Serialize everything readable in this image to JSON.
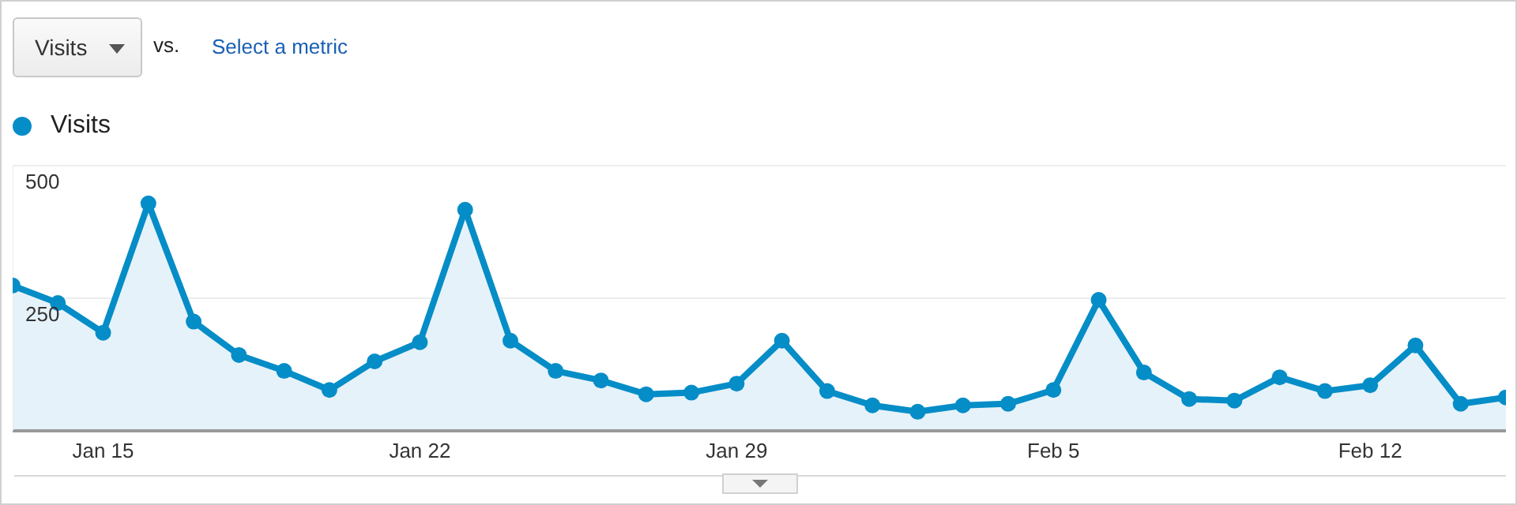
{
  "chart_data": {
    "type": "area",
    "annotations": [
      "Visits",
      "vs.",
      "Select a metric"
    ],
    "categories": [
      null,
      null,
      "Jan 15",
      null,
      null,
      null,
      null,
      null,
      null,
      "Jan 22",
      null,
      null,
      null,
      null,
      null,
      null,
      "Jan 29",
      null,
      null,
      null,
      null,
      null,
      null,
      "Feb 5",
      null,
      null,
      null,
      null,
      null,
      null,
      "Feb 12",
      null,
      null,
      null
    ],
    "series": [
      {
        "name": "Visits",
        "color": "#058dc7",
        "values": [
          274,
          241,
          185,
          429,
          206,
          143,
          113,
          77,
          131,
          167,
          417,
          170,
          113,
          95,
          69,
          72,
          89,
          170,
          75,
          48,
          36,
          48,
          51,
          77,
          247,
          110,
          60,
          57,
          101,
          75,
          86,
          161,
          51,
          63
        ]
      }
    ],
    "ylim": [
      0,
      500
    ],
    "yticks": [
      250,
      500
    ],
    "grid": "y",
    "legend": "top left",
    "marker": "circle"
  }
}
